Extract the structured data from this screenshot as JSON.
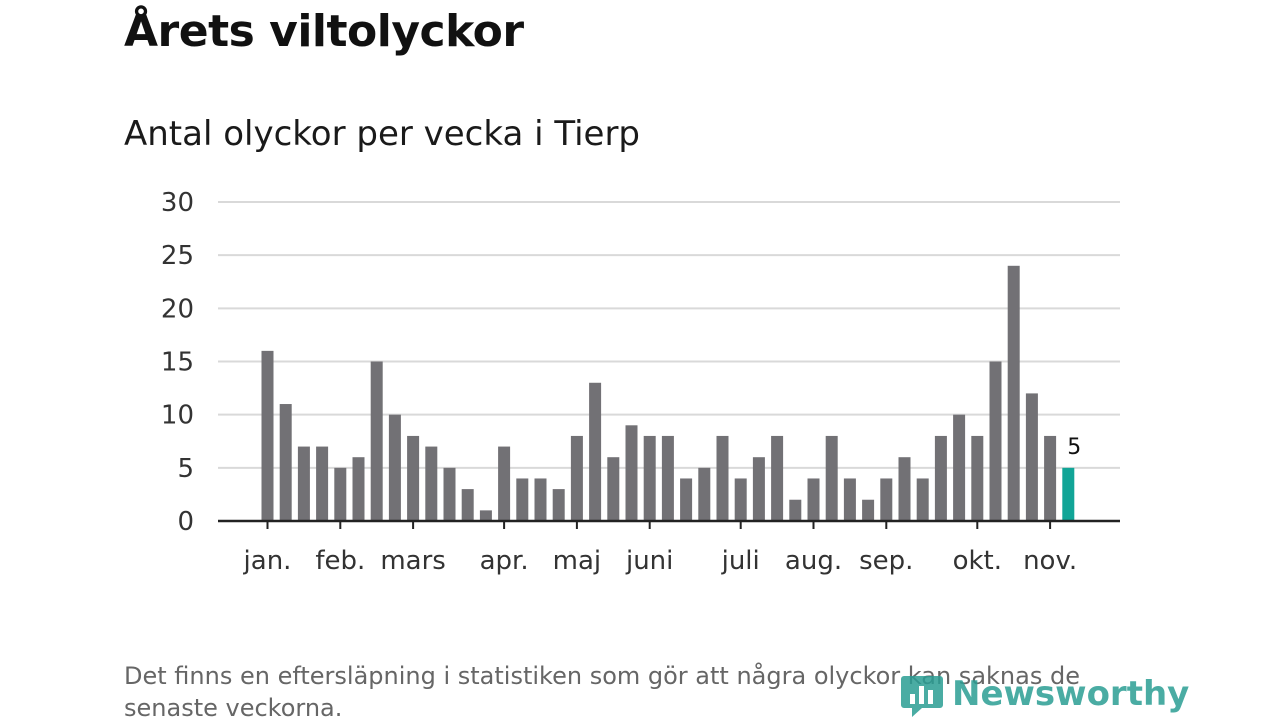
{
  "page": {
    "title": "Årets viltolyckor",
    "subtitle": "Antal olyckor per vecka i Tierp",
    "footnote": "Det finns en eftersläpning i statistiken som gör att några olyckor kan saknas de senaste veckorna.",
    "brand": "Newsworthy"
  },
  "colors": {
    "bar": "#727175",
    "highlight": "#11a597",
    "grid": "#d9d9d9",
    "axis": "#222222",
    "brand": "#2b9e94"
  },
  "chart_data": {
    "type": "bar",
    "title": "Antal olyckor per vecka i Tierp",
    "xlabel": "",
    "ylabel": "",
    "ylim": [
      0,
      30
    ],
    "yticks": [
      0,
      5,
      10,
      15,
      20,
      25,
      30
    ],
    "values": [
      16,
      11,
      7,
      7,
      5,
      6,
      15,
      10,
      8,
      7,
      5,
      3,
      1,
      7,
      4,
      4,
      3,
      8,
      13,
      6,
      9,
      8,
      8,
      4,
      5,
      8,
      4,
      6,
      8,
      2,
      4,
      8,
      4,
      2,
      4,
      6,
      4,
      8,
      10,
      8,
      15,
      24,
      12,
      8,
      5
    ],
    "highlight_index": 44,
    "highlight_label": "5",
    "month_labels": [
      {
        "label": "jan.",
        "bar": 0
      },
      {
        "label": "feb.",
        "bar": 4
      },
      {
        "label": "mars",
        "bar": 8
      },
      {
        "label": "apr.",
        "bar": 13
      },
      {
        "label": "maj",
        "bar": 17
      },
      {
        "label": "juni",
        "bar": 21
      },
      {
        "label": "juli",
        "bar": 26
      },
      {
        "label": "aug.",
        "bar": 30
      },
      {
        "label": "sep.",
        "bar": 34
      },
      {
        "label": "okt.",
        "bar": 39
      },
      {
        "label": "nov.",
        "bar": 43
      }
    ],
    "grid": true,
    "legend": "none"
  }
}
